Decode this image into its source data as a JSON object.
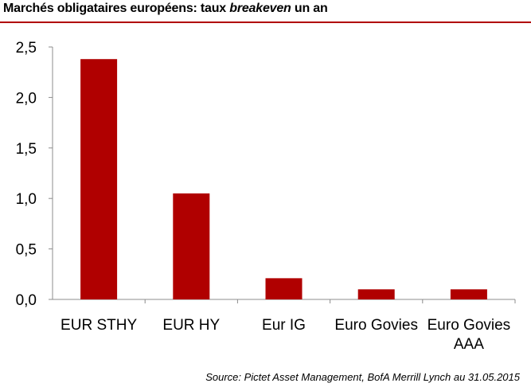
{
  "header": {
    "title_pre": "Marchés obligataires européens: taux ",
    "title_em": "breakeven",
    "title_post": " un an"
  },
  "footer": {
    "source": "Source: Pictet Asset Management, BofA Merrill Lynch au 31.05.2015"
  },
  "colors": {
    "bar": "#b00000",
    "accent_rule": "#b00000",
    "axis": "#8c8c8c"
  },
  "chart_data": {
    "type": "bar",
    "categories": [
      "EUR STHY",
      "EUR HY",
      "Eur IG",
      "Euro Govies",
      "Euro Govies AAA"
    ],
    "category_lines": [
      [
        "EUR STHY"
      ],
      [
        "EUR HY"
      ],
      [
        "Eur IG"
      ],
      [
        "Euro Govies"
      ],
      [
        "Euro Govies",
        "AAA"
      ]
    ],
    "values": [
      2.38,
      1.05,
      0.21,
      0.1,
      0.1
    ],
    "ylim": [
      0,
      2.5
    ],
    "yticks": [
      0,
      0.5,
      1.0,
      1.5,
      2.0,
      2.5
    ],
    "ytick_labels": [
      "0,0",
      "0,5",
      "1,0",
      "1,5",
      "2,0",
      "2,5"
    ],
    "xlabel": "",
    "ylabel": "",
    "grid": false,
    "legend": "none"
  }
}
